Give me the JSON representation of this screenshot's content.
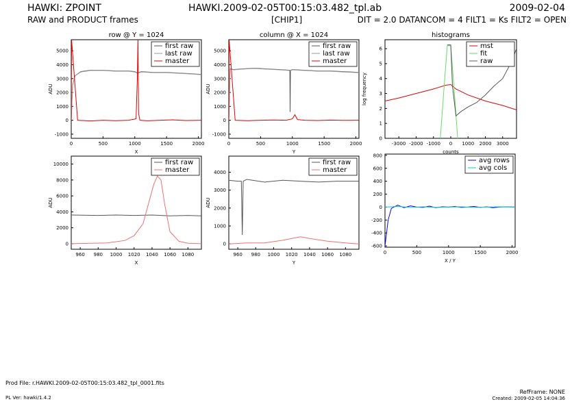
{
  "header": {
    "left_title": "HAWKI: ZPOINT",
    "left_subtitle": "RAW and PRODUCT frames",
    "center_title": "HAWKI.2009-02-05T00:15:03.482_tpl.ab",
    "center_subtitle": "[CHIP1]",
    "right_title": "2009-02-04",
    "right_subtitle": "DIT = 2.0 DATANCOM = 4 FILT1 = Ks FILT2 = OPEN"
  },
  "footer": {
    "prod_file": "Prod File: r.HAWKI.2009-02-05T00:15:03.482_tpl_0001.fits",
    "pl_ver": "PL Ver:  hawki/1.4.2",
    "ref_frame": "RefFrame: NONE",
    "created": "Created:  2009-02-05  14:04:36"
  },
  "colors": {
    "raw": "#555555",
    "master": "#e00000",
    "master_light": "#f07070",
    "fit": "#66dd66",
    "avg_rows": "#0000ee",
    "avg_cols": "#00cccc"
  },
  "chart_data": [
    {
      "id": "row",
      "type": "line",
      "title": "row @ Y = 1024",
      "xlabel": "X",
      "ylabel": "ADU",
      "xlim": [
        0,
        2048
      ],
      "ylim": [
        -1300,
        5800
      ],
      "xticks": [
        0,
        500,
        1000,
        1500,
        2000
      ],
      "yticks": [
        -1000,
        0,
        1000,
        2000,
        3000,
        4000,
        5000
      ],
      "legend": "top-right",
      "series": [
        {
          "name": "first raw",
          "color": "#555555",
          "x": [
            0,
            20,
            60,
            150,
            300,
            500,
            700,
            900,
            1000,
            1040,
            1100,
            1300,
            1500,
            1700,
            1900,
            2048
          ],
          "y": [
            0,
            2500,
            3200,
            3500,
            3600,
            3600,
            3550,
            3550,
            3500,
            3400,
            3500,
            3450,
            3450,
            3400,
            3350,
            3300
          ]
        },
        {
          "name": "last raw",
          "color": "#999999",
          "x": [
            0,
            20,
            60,
            150,
            300,
            500,
            700,
            900,
            1000,
            1040,
            1100,
            1300,
            1500,
            1700,
            1900,
            2048
          ],
          "y": [
            0,
            2500,
            3200,
            3480,
            3580,
            3580,
            3530,
            3530,
            3480,
            3380,
            3480,
            3430,
            3430,
            3380,
            3330,
            3280
          ]
        },
        {
          "name": "master",
          "color": "#e00000",
          "x": [
            0,
            5,
            100,
            300,
            500,
            700,
            900,
            1020,
            1040,
            1050,
            1060,
            1080,
            1200,
            1400,
            1600,
            1800,
            2048
          ],
          "y": [
            0,
            5800,
            0,
            -50,
            0,
            -30,
            0,
            100,
            3000,
            5800,
            500,
            0,
            -40,
            0,
            30,
            -20,
            0
          ]
        }
      ]
    },
    {
      "id": "column",
      "type": "line",
      "title": "column @ X = 1024",
      "xlabel": "Y",
      "ylabel": "ADU",
      "xlim": [
        0,
        2048
      ],
      "ylim": [
        -1300,
        5800
      ],
      "xticks": [
        0,
        500,
        1000,
        1500,
        2000
      ],
      "yticks": [
        -1000,
        0,
        1000,
        2000,
        3000,
        4000,
        5000
      ],
      "legend": "top-right",
      "series": [
        {
          "name": "first raw",
          "color": "#555555",
          "x": [
            0,
            20,
            80,
            200,
            400,
            600,
            800,
            960,
            965,
            970,
            1000,
            1200,
            1400,
            1600,
            1800,
            2048
          ],
          "y": [
            0,
            3700,
            3650,
            3700,
            3750,
            3700,
            3650,
            3600,
            600,
            3600,
            3650,
            3600,
            3550,
            3550,
            3500,
            3450
          ]
        },
        {
          "name": "last raw",
          "color": "#999999",
          "x": [
            0,
            20,
            80,
            200,
            400,
            600,
            800,
            960,
            1000,
            1200,
            1400,
            1600,
            1800,
            2048
          ],
          "y": [
            0,
            3680,
            3630,
            3680,
            3730,
            3680,
            3630,
            3580,
            3630,
            3580,
            3530,
            3530,
            3480,
            3430
          ]
        },
        {
          "name": "master",
          "color": "#e00000",
          "x": [
            0,
            5,
            100,
            300,
            500,
            700,
            900,
            1000,
            1040,
            1080,
            1200,
            1400,
            1600,
            1800,
            2048
          ],
          "y": [
            0,
            5800,
            0,
            -30,
            0,
            20,
            0,
            100,
            400,
            50,
            0,
            -20,
            10,
            -10,
            0
          ]
        }
      ]
    },
    {
      "id": "histograms",
      "type": "line",
      "title": "histograms",
      "xlabel": "counts",
      "ylabel": "log frequency",
      "xlim": [
        -3800,
        3800
      ],
      "ylim": [
        0,
        6.6
      ],
      "xticks": [
        -3000,
        -2000,
        -1000,
        0,
        1000,
        2000,
        3000
      ],
      "yticks": [
        0,
        1,
        2,
        3,
        4,
        5,
        6
      ],
      "legend": "top-right",
      "series": [
        {
          "name": "mst",
          "color": "#e00000",
          "x": [
            -3800,
            -3000,
            -2000,
            -1000,
            -300,
            0,
            300,
            1000,
            2000,
            3000,
            3800
          ],
          "y": [
            2.5,
            2.7,
            3.0,
            3.3,
            3.55,
            3.6,
            3.3,
            2.9,
            2.5,
            2.2,
            1.9
          ]
        },
        {
          "name": "fit",
          "color": "#66dd66",
          "x": [
            -600,
            -400,
            -200,
            0,
            200,
            400
          ],
          "y": [
            0,
            3.2,
            6.2,
            6.2,
            3.2,
            0
          ]
        },
        {
          "name": "raw",
          "color": "#555555",
          "x": [
            -200,
            0,
            100,
            300,
            600,
            1000,
            1500,
            2000,
            2500,
            3000,
            3500,
            3800
          ],
          "y": [
            6.25,
            6.25,
            3.5,
            1.5,
            1.8,
            2.1,
            2.4,
            2.9,
            3.5,
            4.0,
            5.1,
            6.0
          ]
        }
      ]
    },
    {
      "id": "row-zoom",
      "type": "line",
      "title": "",
      "xlabel": "X",
      "ylabel": "ADU",
      "xlim": [
        950,
        1095
      ],
      "ylim": [
        -700,
        11000
      ],
      "xticks": [
        960,
        980,
        1000,
        1020,
        1040,
        1060,
        1080
      ],
      "yticks": [
        0,
        2000,
        4000,
        6000,
        8000,
        10000
      ],
      "legend": "top-right",
      "series": [
        {
          "name": "first raw",
          "color": "#555555",
          "x": [
            950,
            980,
            1000,
            1020,
            1040,
            1060,
            1080,
            1095
          ],
          "y": [
            3600,
            3550,
            3600,
            3550,
            3600,
            3500,
            3550,
            3500
          ]
        },
        {
          "name": "master",
          "color": "#f07070",
          "x": [
            950,
            990,
            1010,
            1020,
            1030,
            1036,
            1042,
            1046,
            1050,
            1054,
            1060,
            1070,
            1080,
            1095
          ],
          "y": [
            0,
            100,
            400,
            1000,
            2500,
            5000,
            7500,
            8500,
            8000,
            5000,
            1500,
            300,
            50,
            0
          ]
        }
      ]
    },
    {
      "id": "column-zoom",
      "type": "line",
      "title": "",
      "xlabel": "Y",
      "ylabel": "ADU",
      "xlim": [
        950,
        1095
      ],
      "ylim": [
        -300,
        4900
      ],
      "xticks": [
        960,
        980,
        1000,
        1020,
        1040,
        1060,
        1080
      ],
      "yticks": [
        0,
        1000,
        2000,
        3000,
        4000
      ],
      "legend": "top-right",
      "series": [
        {
          "name": "first raw",
          "color": "#555555",
          "x": [
            950,
            960,
            964,
            965,
            966,
            970,
            990,
            1010,
            1030,
            1050,
            1070,
            1095
          ],
          "y": [
            3550,
            3500,
            3500,
            500,
            3500,
            3600,
            3450,
            3550,
            3500,
            3450,
            3500,
            3500
          ]
        },
        {
          "name": "master",
          "color": "#f07070",
          "x": [
            950,
            970,
            990,
            1010,
            1030,
            1040,
            1060,
            1080,
            1095
          ],
          "y": [
            0,
            50,
            50,
            200,
            400,
            300,
            150,
            50,
            0
          ]
        }
      ]
    },
    {
      "id": "averages",
      "type": "line",
      "title": "",
      "xlabel": "X / Y",
      "ylabel": "",
      "xlim": [
        0,
        2048
      ],
      "ylim": [
        -620,
        820
      ],
      "xticks": [
        0,
        500,
        1000,
        1500,
        2000
      ],
      "yticks": [
        -600,
        -400,
        -200,
        0,
        200,
        400,
        600,
        800
      ],
      "legend": "top-right",
      "series": [
        {
          "name": "avg rows",
          "color": "#0000ee",
          "x": [
            0,
            50,
            100,
            200,
            300,
            400,
            500,
            600,
            700,
            800,
            900,
            1000,
            1100,
            1200,
            1300,
            1400,
            1500,
            1600,
            1700,
            1800,
            1900,
            2048
          ],
          "y": [
            -600,
            -200,
            -20,
            30,
            -10,
            20,
            0,
            -5,
            15,
            -10,
            5,
            0,
            10,
            -5,
            0,
            10,
            -5,
            5,
            -10,
            0,
            5,
            0
          ]
        },
        {
          "name": "avg cols",
          "color": "#00cccc",
          "x": [
            0,
            200,
            400,
            600,
            800,
            1000,
            1200,
            1400,
            1600,
            1800,
            2048
          ],
          "y": [
            0,
            10,
            -5,
            5,
            -5,
            0,
            5,
            -5,
            0,
            5,
            0
          ]
        }
      ]
    }
  ]
}
